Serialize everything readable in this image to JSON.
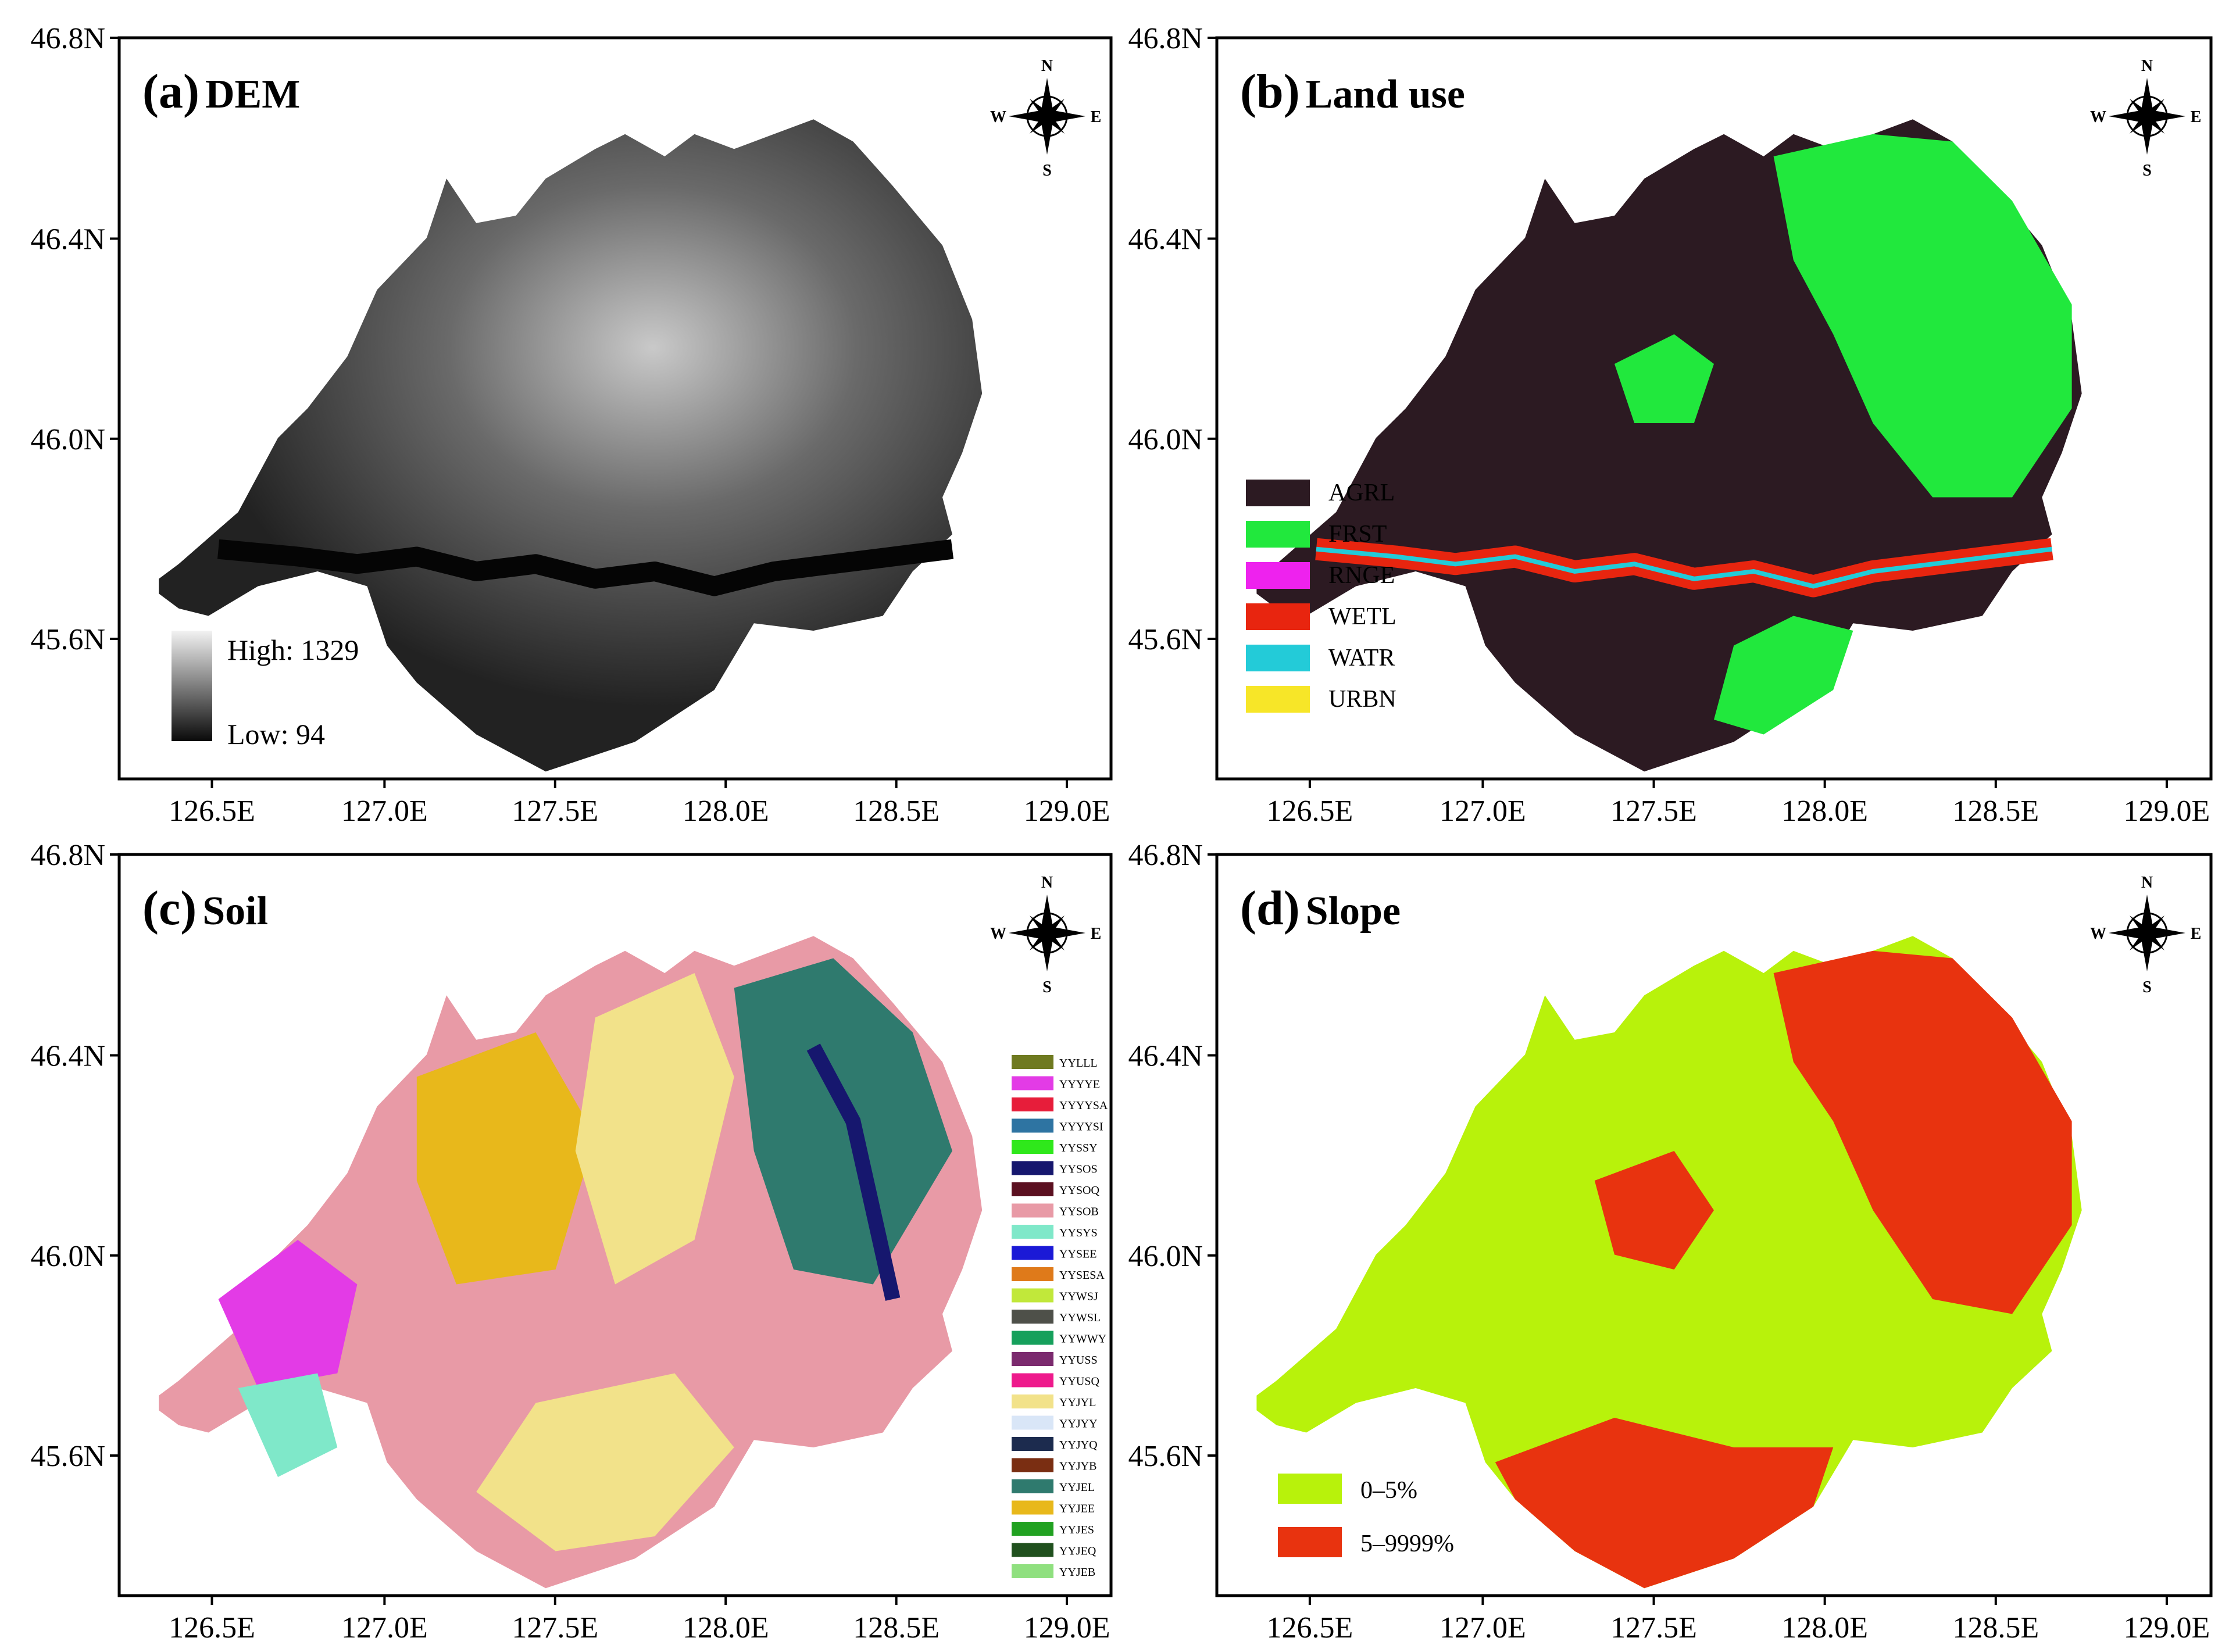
{
  "panels": [
    {
      "id": "a",
      "letter": "(a)",
      "title": "DEM",
      "legend_type": "gradient",
      "gradient": {
        "high_label": "High: 1329",
        "low_label": "Low:  94",
        "high_color": "#f2f2f2",
        "low_color": "#0a0a0a"
      },
      "legend_items": []
    },
    {
      "id": "b",
      "letter": "(b)",
      "title": "Land use",
      "legend_type": "classes",
      "legend_items": [
        {
          "label": "AGRL",
          "color": "#2c1a22"
        },
        {
          "label": "FRST",
          "color": "#21e83d"
        },
        {
          "label": "RNGE",
          "color": "#ee22ee"
        },
        {
          "label": "WETL",
          "color": "#e8250f"
        },
        {
          "label": "WATR",
          "color": "#23cbd8"
        },
        {
          "label": "URBN",
          "color": "#f7e628"
        }
      ]
    },
    {
      "id": "c",
      "letter": "(c)",
      "title": "Soil",
      "legend_type": "soil",
      "legend_items": [
        {
          "label": "YYLLL",
          "color": "#6f7a20"
        },
        {
          "label": "YYYYE",
          "color": "#e33be6"
        },
        {
          "label": "YYYYSA",
          "color": "#e71d3a"
        },
        {
          "label": "YYYYSI",
          "color": "#2e74a2"
        },
        {
          "label": "YYSSY",
          "color": "#2fe81b"
        },
        {
          "label": "YYSOS",
          "color": "#16176e"
        },
        {
          "label": "YYSOQ",
          "color": "#5b1020"
        },
        {
          "label": "YYSOB",
          "color": "#e89aa6"
        },
        {
          "label": "YYSYS",
          "color": "#7fe8c9"
        },
        {
          "label": "YYSEE",
          "color": "#1b19d6"
        },
        {
          "label": "YYSESA",
          "color": "#df7a1a"
        },
        {
          "label": "YYWSJ",
          "color": "#c1e83a"
        },
        {
          "label": "YYWSL",
          "color": "#4e5049"
        },
        {
          "label": "YYWWY",
          "color": "#16a05c"
        },
        {
          "label": "YYUSS",
          "color": "#7b2a6e"
        },
        {
          "label": "YYUSQ",
          "color": "#ee1a8c"
        },
        {
          "label": "YYJYL",
          "color": "#f2e28a"
        },
        {
          "label": "YYJYY",
          "color": "#d9e6f7"
        },
        {
          "label": "YYJYQ",
          "color": "#1c2b4e"
        },
        {
          "label": "YYJYB",
          "color": "#7a2e12"
        },
        {
          "label": "YYJEL",
          "color": "#2f7a6e"
        },
        {
          "label": "YYJEE",
          "color": "#e8b81b"
        },
        {
          "label": "YYJES",
          "color": "#21a121"
        },
        {
          "label": "YYJEQ",
          "color": "#20501e"
        },
        {
          "label": "YYJEB",
          "color": "#8fe07f"
        }
      ]
    },
    {
      "id": "d",
      "letter": "(d)",
      "title": "Slope",
      "legend_type": "classes",
      "legend_items": [
        {
          "label": "0–5%",
          "color": "#b8f20b"
        },
        {
          "label": "5–9999%",
          "color": "#e8330f"
        }
      ]
    }
  ],
  "axes": {
    "x_ticks": [
      "126.5E",
      "127.0E",
      "127.5E",
      "128.0E",
      "128.5E",
      "129.0E"
    ],
    "y_ticks": [
      "46.8N",
      "46.4N",
      "46.0N",
      "45.6N"
    ]
  },
  "compass": {
    "n": "N",
    "s": "S",
    "e": "E",
    "w": "W"
  },
  "colors": {
    "dem_dark": "#101010",
    "dem_light": "#d8d8d8",
    "agrl": "#2c1a22",
    "frst": "#21e83d",
    "wetl": "#e8250f",
    "watr": "#23cbd8",
    "slope_low": "#b8f20b",
    "slope_high": "#e8330f"
  }
}
